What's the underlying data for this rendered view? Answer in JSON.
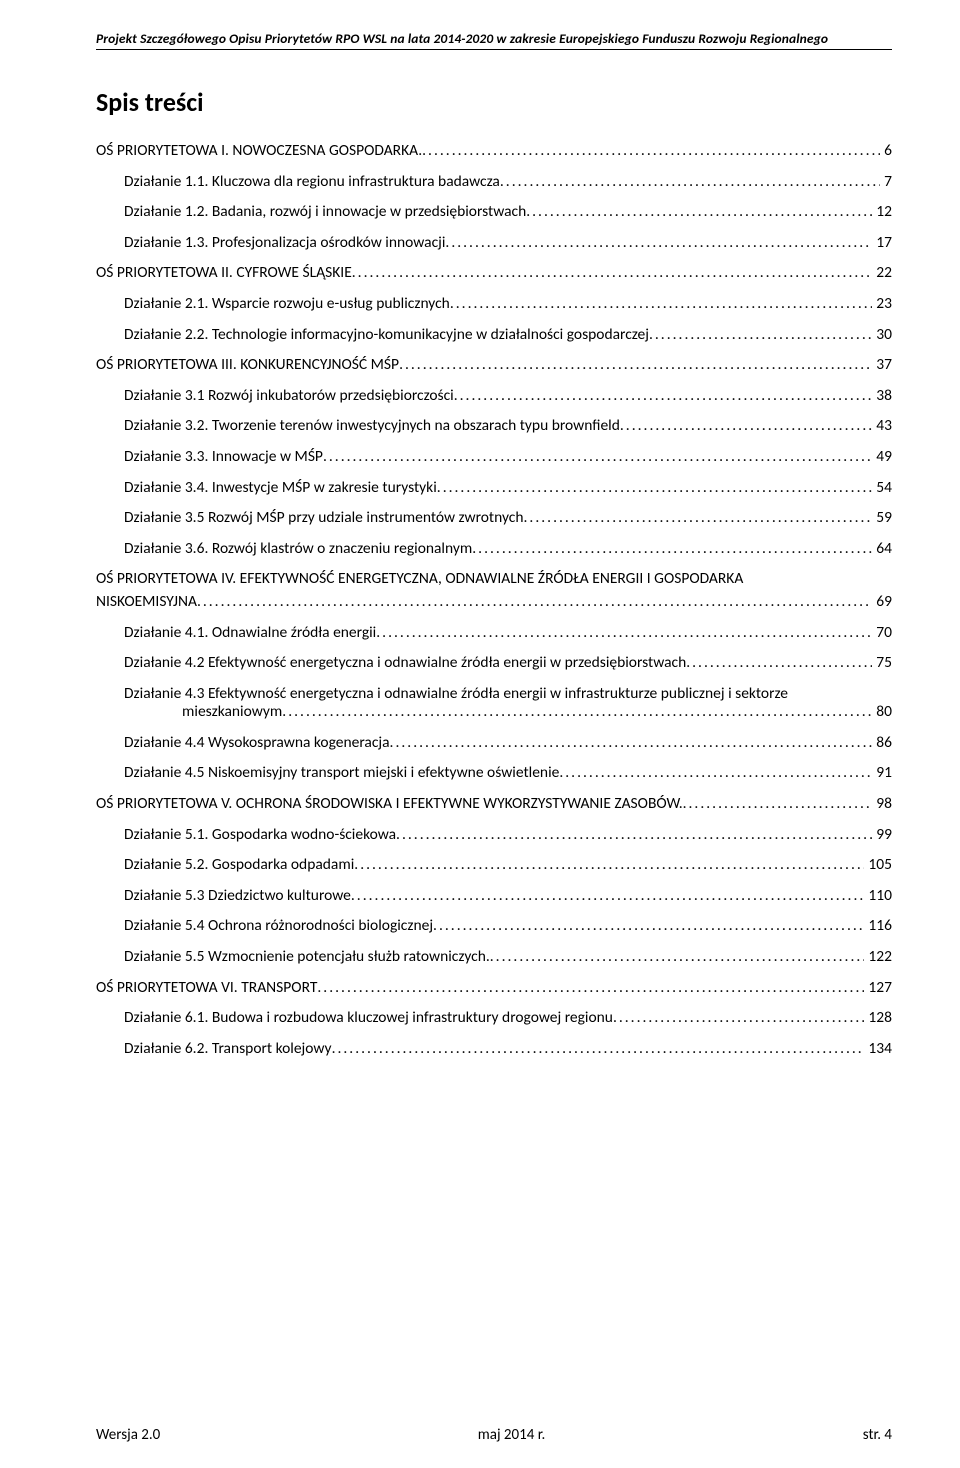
{
  "header": "Projekt Szczegółowego Opisu Priorytetów RPO WSL na lata 2014-2020 w zakresie Europejskiego Funduszu Rozwoju Regionalnego",
  "title": "Spis treści",
  "toc": [
    {
      "lvl": 0,
      "label": "OŚ PRIORYTETOWA I. NOWOCZESNA GOSPODARKA.",
      "pg": "6"
    },
    {
      "lvl": 1,
      "label": "Działanie 1.1. Kluczowa dla regionu infrastruktura badawcza",
      "pg": "7"
    },
    {
      "lvl": 1,
      "label": "Działanie 1.2. Badania, rozwój i innowacje w przedsiębiorstwach",
      "pg": " 12"
    },
    {
      "lvl": 1,
      "label": "Działanie 1.3. Profesjonalizacja ośrodków innowacji",
      "pg": " 17"
    },
    {
      "lvl": 0,
      "label": "OŚ PRIORYTETOWA II. CYFROWE ŚLĄSKIE",
      "pg": " 22"
    },
    {
      "lvl": 1,
      "label": "Działanie 2.1. Wsparcie rozwoju e-usług publicznych",
      "pg": " 23"
    },
    {
      "lvl": 1,
      "label": "Działanie 2.2. Technologie informacyjno-komunikacyjne w działalności gospodarczej",
      "pg": " 30"
    },
    {
      "lvl": 0,
      "label": "OŚ PRIORYTETOWA III. KONKURENCYJNOŚĆ MŚP",
      "pg": " 37"
    },
    {
      "lvl": 1,
      "label": "Działanie 3.1 Rozwój inkubatorów przedsiębiorczości",
      "pg": " 38"
    },
    {
      "lvl": 1,
      "label": "Działanie 3.2. Tworzenie terenów inwestycyjnych na obszarach typu brownfield",
      "pg": " 43"
    },
    {
      "lvl": 1,
      "label": "Działanie 3.3. Innowacje w MŚP",
      "pg": " 49"
    },
    {
      "lvl": 1,
      "label": "Działanie 3.4. Inwestycje MŚP w zakresie turystyki",
      "pg": " 54"
    },
    {
      "lvl": 1,
      "label": "Działanie 3.5 Rozwój MŚP przy udziale instrumentów zwrotnych",
      "pg": " 59"
    },
    {
      "lvl": 1,
      "label": "Działanie 3.6. Rozwój klastrów o znaczeniu regionalnym",
      "pg": " 64"
    },
    {
      "lvl": 0,
      "wrap": true,
      "label1": "OŚ PRIORYTETOWA IV. EFEKTYWNOŚĆ ENERGETYCZNA, ODNAWIALNE ŹRÓDŁA ENERGII I GOSPODARKA",
      "label2": "NISKOEMISYJNA",
      "pg": " 69"
    },
    {
      "lvl": 1,
      "label": "Działanie 4.1. Odnawialne źródła energii",
      "pg": " 70"
    },
    {
      "lvl": 1,
      "label": "Działanie 4.2 Efektywność energetyczna i odnawialne źródła energii w przedsiębiorstwach",
      "pg": " 75"
    },
    {
      "lvl": 1,
      "wrap": true,
      "label1": "Działanie 4.3 Efektywność energetyczna i odnawialne źródła energii w infrastrukturze publicznej i sektorze",
      "label2": "mieszkaniowym",
      "pg": " 80"
    },
    {
      "lvl": 1,
      "label": "Działanie 4.4 Wysokosprawna kogeneracja",
      "pg": " 86"
    },
    {
      "lvl": 1,
      "label": "Działanie 4.5 Niskoemisyjny transport miejski i efektywne oświetlenie",
      "pg": " 91"
    },
    {
      "lvl": 0,
      "label": "OŚ PRIORYTETOWA V. OCHRONA ŚRODOWISKA I EFEKTYWNE WYKORZYSTYWANIE ZASOBÓW. ",
      "pg": " 98"
    },
    {
      "lvl": 1,
      "label": "Działanie 5.1. Gospodarka wodno-ściekowa",
      "pg": " 99"
    },
    {
      "lvl": 1,
      "label": "Działanie 5.2. Gospodarka odpadami",
      "pg": " 105"
    },
    {
      "lvl": 1,
      "label": "Działanie 5.3 Dziedzictwo kulturowe",
      "pg": " 110"
    },
    {
      "lvl": 1,
      "label": "Działanie 5.4 Ochrona różnorodności biologicznej",
      "pg": " 116"
    },
    {
      "lvl": 1,
      "label": "Działanie 5.5 Wzmocnienie potencjału służb ratowniczych. ",
      "pg": " 122"
    },
    {
      "lvl": 0,
      "label": "OŚ PRIORYTETOWA VI. TRANSPORT",
      "pg": " 127"
    },
    {
      "lvl": 1,
      "label": "Działanie 6.1. Budowa i rozbudowa kluczowej infrastruktury drogowej regionu",
      "pg": " 128"
    },
    {
      "lvl": 1,
      "label": "Działanie 6.2. Transport kolejowy",
      "pg": " 134"
    }
  ],
  "footer": {
    "left": "Wersja 2.0",
    "center": "maj 2014 r.",
    "right": "str. 4"
  },
  "colors": {
    "text": "#000000",
    "background": "#ffffff"
  },
  "typography": {
    "body_fontsize_pt": 11,
    "header_fontsize_pt": 10,
    "title_fontsize_pt": 20,
    "font_family": "Calibri"
  }
}
